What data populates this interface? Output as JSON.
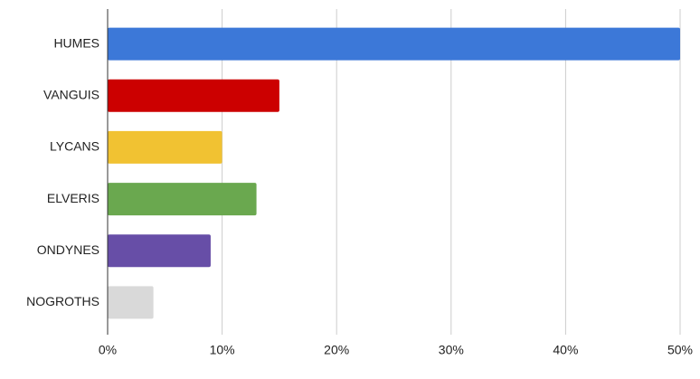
{
  "chart_data": {
    "type": "barh",
    "categories": [
      "HUMES",
      "VANGUIS",
      "LYCANS",
      "ELVERIS",
      "ONDYNES",
      "NOGROTHS"
    ],
    "values": [
      50,
      15,
      10,
      13,
      9,
      4
    ],
    "colors": [
      "#3c78d8",
      "#cc0000",
      "#f1c232",
      "#6aa84f",
      "#674ea7",
      "#d9d9d9"
    ],
    "xlim": [
      0,
      50
    ],
    "xticks": [
      {
        "value": 0,
        "label": "0%"
      },
      {
        "value": 10,
        "label": "10%"
      },
      {
        "value": 20,
        "label": "20%"
      },
      {
        "value": 30,
        "label": "30%"
      },
      {
        "value": 40,
        "label": "40%"
      },
      {
        "value": 50,
        "label": "50%"
      }
    ],
    "grid": true
  }
}
